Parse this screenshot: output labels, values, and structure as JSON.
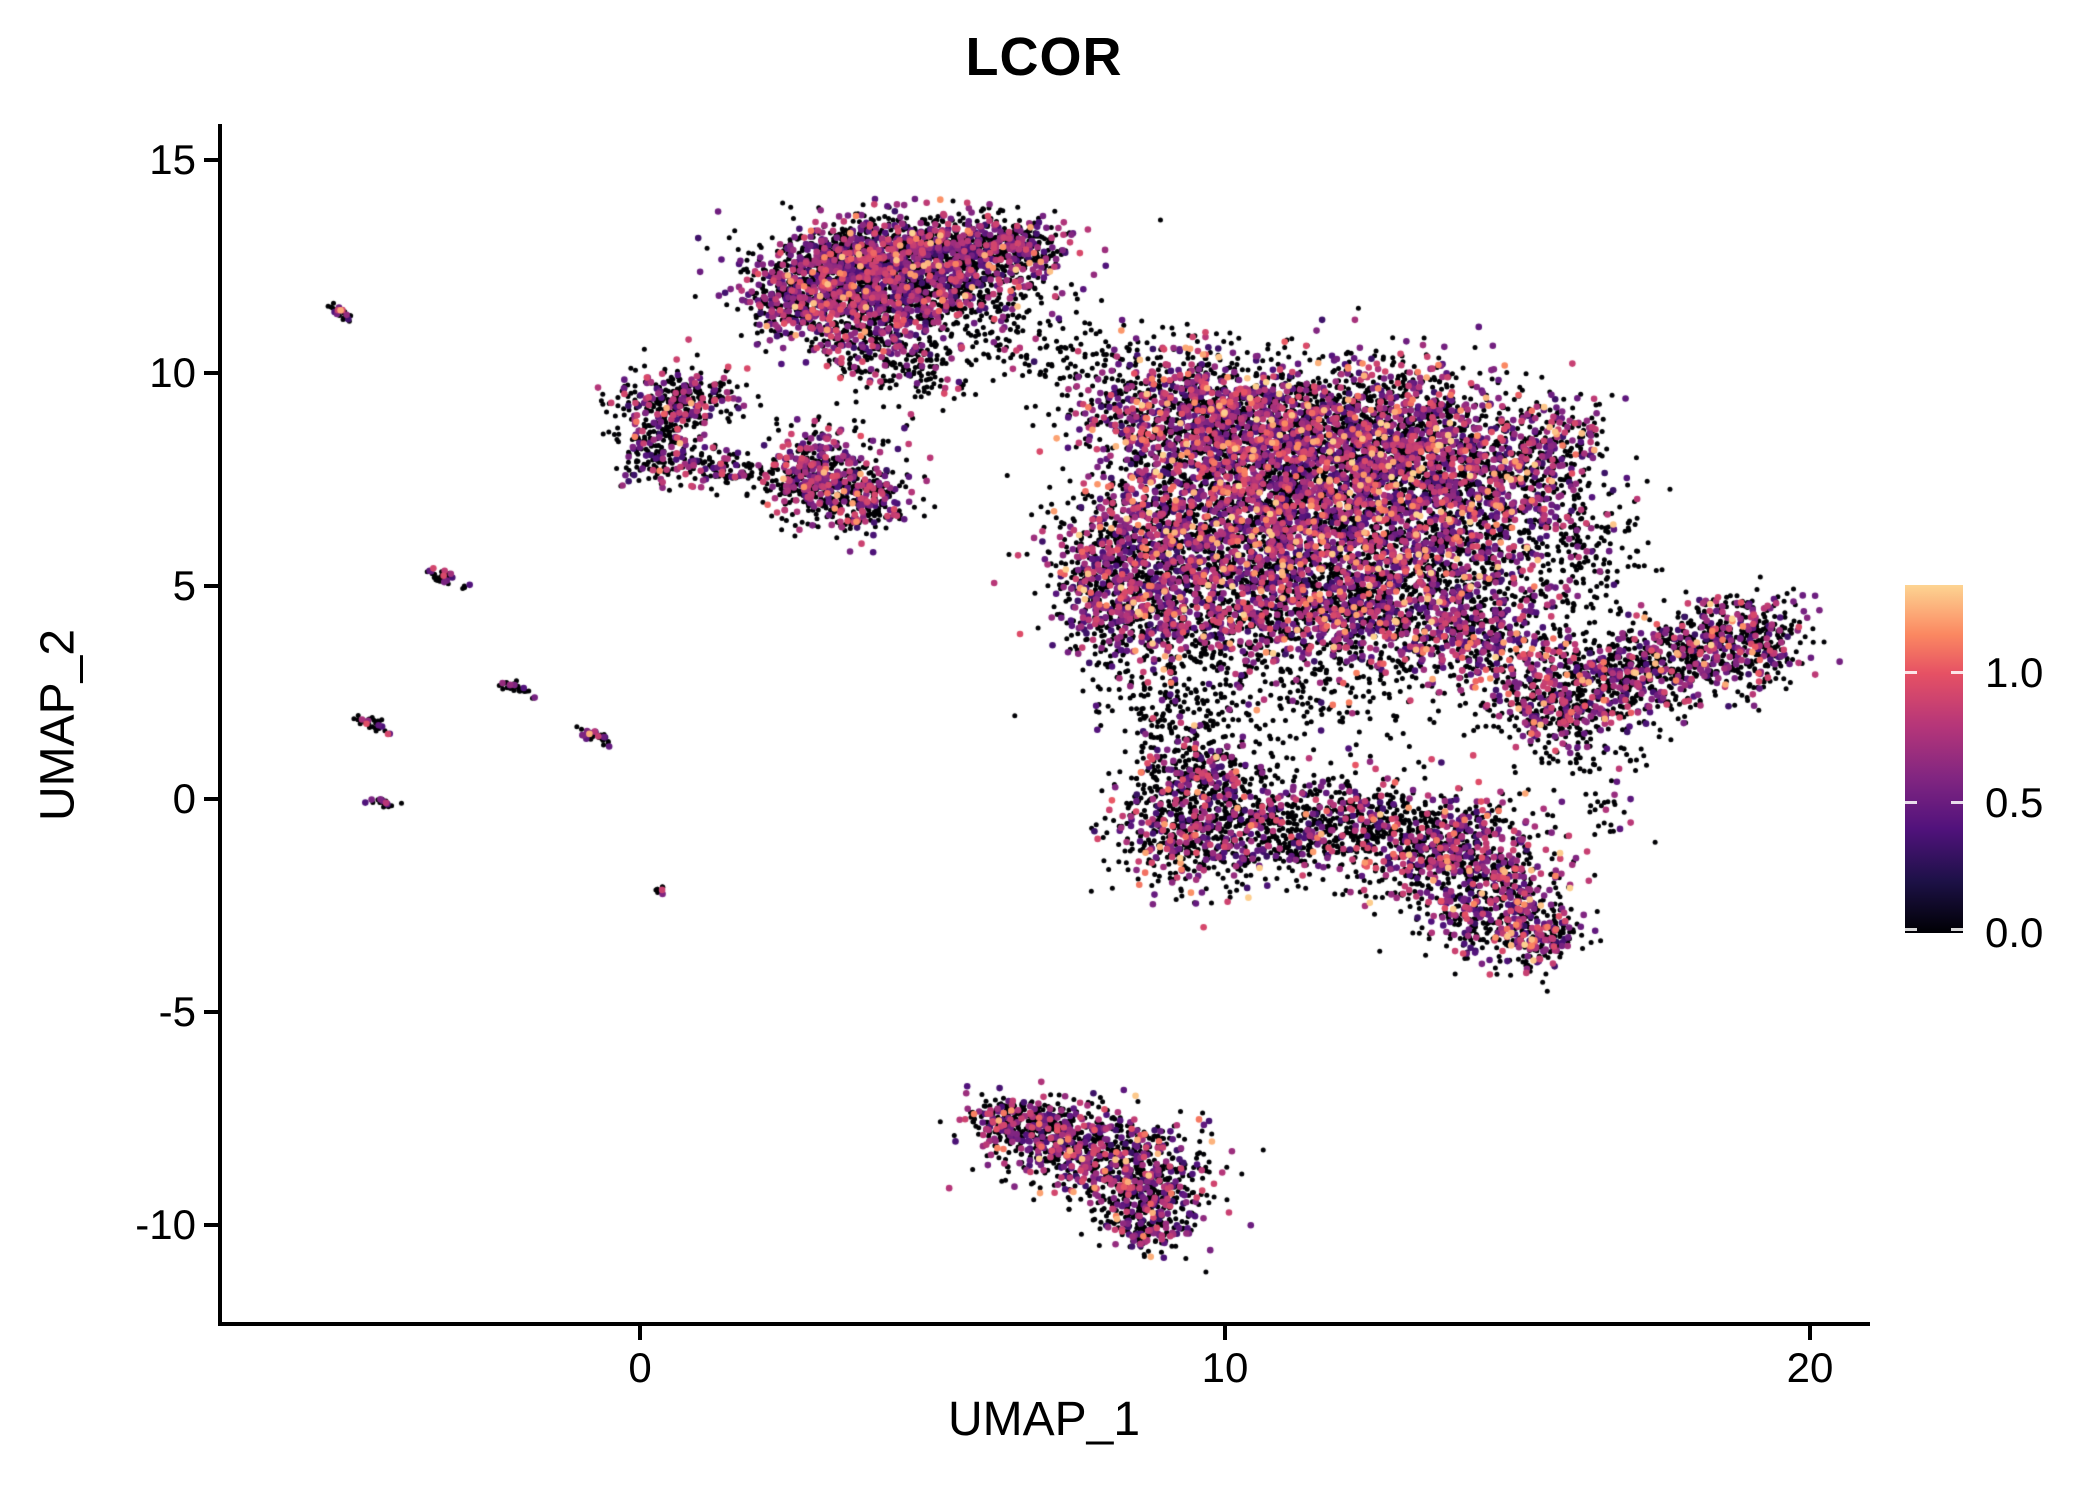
{
  "title": "LCOR",
  "panel": {
    "bg": "#ffffff",
    "axis_color": "#000000"
  },
  "chart_data": {
    "type": "scatter",
    "title": "LCOR",
    "xlabel": "UMAP_1",
    "ylabel": "UMAP_2",
    "xlim": [
      -7.15,
      20.96
    ],
    "ylim": [
      -12.28,
      15.76
    ],
    "grid": false,
    "seed": 42,
    "x_ticks": [
      {
        "value": 0,
        "label": "0"
      },
      {
        "value": 10,
        "label": "10"
      },
      {
        "value": 20,
        "label": "20"
      }
    ],
    "y_ticks": [
      {
        "value": 15,
        "label": "15"
      },
      {
        "value": 10,
        "label": "10"
      },
      {
        "value": 5,
        "label": "5"
      },
      {
        "value": 0,
        "label": "0"
      },
      {
        "value": -5,
        "label": "-5"
      },
      {
        "value": -10,
        "label": "-10"
      }
    ],
    "legend": {
      "position": "right",
      "range": [
        0,
        1.34
      ],
      "ticks": [
        {
          "value": 1.0,
          "label": "1.0"
        },
        {
          "value": 0.5,
          "label": "0.5"
        },
        {
          "value": 0.0,
          "label": "0.0"
        }
      ]
    },
    "colormap": {
      "name": "magma",
      "stops": [
        [
          0.0,
          "#000004"
        ],
        [
          0.2,
          "#1d1147"
        ],
        [
          0.4,
          "#51127c"
        ],
        [
          0.6,
          "#822681"
        ],
        [
          0.8,
          "#b63679"
        ],
        [
          1.0,
          "#e65164"
        ],
        [
          1.15,
          "#fb8861"
        ],
        [
          1.34,
          "#fdd492"
        ]
      ]
    },
    "point_style": {
      "r_zero": 2.5,
      "r_expr": 3.3
    },
    "clusters": [
      {
        "name": "top",
        "p0": 0.6,
        "pHigh": 0.03,
        "components": [
          {
            "x": 4.6,
            "y": 12.9,
            "sx": 1.1,
            "sy": 0.45,
            "n": 900
          },
          {
            "x": 3.4,
            "y": 12.2,
            "sx": 0.8,
            "sy": 0.55,
            "n": 800
          },
          {
            "x": 4.8,
            "y": 11.9,
            "sx": 0.9,
            "sy": 0.5,
            "n": 600
          },
          {
            "x": 5.9,
            "y": 12.9,
            "sx": 0.6,
            "sy": 0.4,
            "n": 250
          },
          {
            "x": 4.1,
            "y": 10.9,
            "sx": 0.6,
            "sy": 0.5,
            "n": 300
          },
          {
            "x": 6.6,
            "y": 13.0,
            "sx": 0.35,
            "sy": 0.3,
            "n": 90
          },
          {
            "x": 2.6,
            "y": 11.6,
            "sx": 0.4,
            "sy": 0.4,
            "n": 200
          }
        ]
      },
      {
        "name": "upper-left-small",
        "p0": 0.68,
        "pHigh": 0.02,
        "components": [
          {
            "x": 0.7,
            "y": 9.4,
            "sx": 0.55,
            "sy": 0.35,
            "n": 300
          },
          {
            "x": 0.3,
            "y": 8.3,
            "sx": 0.4,
            "sy": 0.45,
            "n": 220
          },
          {
            "x": 1.3,
            "y": 7.8,
            "sx": 0.3,
            "sy": 0.25,
            "n": 90
          }
        ]
      },
      {
        "name": "mid-left",
        "p0": 0.6,
        "pHigh": 0.03,
        "components": [
          {
            "x": 3.1,
            "y": 7.6,
            "sx": 0.55,
            "sy": 0.55,
            "n": 550
          },
          {
            "x": 3.9,
            "y": 7.0,
            "sx": 0.4,
            "sy": 0.35,
            "n": 180
          }
        ]
      },
      {
        "name": "main",
        "p0": 0.58,
        "pHigh": 0.055,
        "components": [
          {
            "x": 9.3,
            "y": 9.0,
            "sx": 0.9,
            "sy": 0.8,
            "n": 800
          },
          {
            "x": 11.2,
            "y": 8.8,
            "sx": 1.3,
            "sy": 0.8,
            "n": 1300
          },
          {
            "x": 13.2,
            "y": 8.3,
            "sx": 1.0,
            "sy": 0.9,
            "n": 1100
          },
          {
            "x": 10.3,
            "y": 7.0,
            "sx": 1.1,
            "sy": 1.0,
            "n": 1300
          },
          {
            "x": 12.3,
            "y": 6.3,
            "sx": 1.3,
            "sy": 1.1,
            "n": 1600
          },
          {
            "x": 8.6,
            "y": 6.0,
            "sx": 0.8,
            "sy": 0.9,
            "n": 600
          },
          {
            "x": 14.5,
            "y": 6.8,
            "sx": 0.9,
            "sy": 1.1,
            "n": 700
          },
          {
            "x": 15.6,
            "y": 8.3,
            "sx": 0.5,
            "sy": 0.6,
            "n": 200
          },
          {
            "x": 9.9,
            "y": 4.6,
            "sx": 1.0,
            "sy": 0.7,
            "n": 600
          },
          {
            "x": 12.0,
            "y": 4.2,
            "sx": 1.1,
            "sy": 0.8,
            "n": 700
          },
          {
            "x": 13.9,
            "y": 4.3,
            "sx": 0.8,
            "sy": 0.7,
            "n": 450
          },
          {
            "x": 8.3,
            "y": 4.3,
            "sx": 0.6,
            "sy": 0.6,
            "n": 250
          },
          {
            "x": 14.9,
            "y": 3.4,
            "sx": 0.7,
            "sy": 0.7,
            "n": 250
          },
          {
            "x": 7.9,
            "y": 5.2,
            "sx": 0.5,
            "sy": 0.8,
            "n": 200
          }
        ]
      },
      {
        "name": "right-arm",
        "p0": 0.65,
        "pHigh": 0.04,
        "components": [
          {
            "x": 16.3,
            "y": 2.6,
            "sx": 0.8,
            "sy": 0.55,
            "n": 400,
            "rot": 15
          },
          {
            "x": 17.6,
            "y": 3.2,
            "sx": 0.8,
            "sy": 0.55,
            "n": 450,
            "rot": 18
          },
          {
            "x": 18.8,
            "y": 3.9,
            "sx": 0.6,
            "sy": 0.5,
            "n": 300,
            "rot": 20
          },
          {
            "x": 19.3,
            "y": 3.3,
            "sx": 0.3,
            "sy": 0.4,
            "n": 80
          },
          {
            "x": 15.4,
            "y": 2.0,
            "sx": 0.4,
            "sy": 0.35,
            "n": 120
          }
        ]
      },
      {
        "name": "lower-center",
        "p0": 0.7,
        "pHigh": 0.03,
        "components": [
          {
            "x": 9.6,
            "y": 0.6,
            "sx": 0.6,
            "sy": 0.5,
            "n": 300
          },
          {
            "x": 9.4,
            "y": -0.7,
            "sx": 0.7,
            "sy": 0.7,
            "n": 500
          },
          {
            "x": 10.8,
            "y": -0.9,
            "sx": 0.8,
            "sy": 0.5,
            "n": 350
          },
          {
            "x": 12.0,
            "y": -0.3,
            "sx": 0.7,
            "sy": 0.5,
            "n": 250
          }
        ]
      },
      {
        "name": "lower-right",
        "p0": 0.6,
        "pHigh": 0.05,
        "components": [
          {
            "x": 13.9,
            "y": -1.3,
            "sx": 0.8,
            "sy": 0.7,
            "n": 700
          },
          {
            "x": 14.8,
            "y": -2.6,
            "sx": 0.6,
            "sy": 0.6,
            "n": 400
          },
          {
            "x": 15.3,
            "y": -3.3,
            "sx": 0.35,
            "sy": 0.35,
            "n": 150
          }
        ]
      },
      {
        "name": "bottom",
        "p0": 0.62,
        "pHigh": 0.03,
        "components": [
          {
            "x": 6.9,
            "y": -7.7,
            "sx": 0.7,
            "sy": 0.35,
            "n": 350
          },
          {
            "x": 7.9,
            "y": -8.4,
            "sx": 0.8,
            "sy": 0.5,
            "n": 550
          },
          {
            "x": 8.7,
            "y": -9.3,
            "sx": 0.5,
            "sy": 0.45,
            "n": 300
          },
          {
            "x": 8.6,
            "y": -10.1,
            "sx": 0.35,
            "sy": 0.3,
            "n": 120
          },
          {
            "x": 6.2,
            "y": -7.5,
            "sx": 0.3,
            "sy": 0.25,
            "n": 90
          }
        ]
      },
      {
        "name": "left-streaks",
        "p0": 0.72,
        "pHigh": 0.02,
        "components": [
          {
            "x": -5.1,
            "y": 11.4,
            "sx": 0.16,
            "sy": 0.06,
            "n": 30,
            "rot": -30
          },
          {
            "x": -3.3,
            "y": 5.15,
            "sx": 0.2,
            "sy": 0.07,
            "n": 40,
            "rot": -30
          },
          {
            "x": -4.55,
            "y": 1.75,
            "sx": 0.2,
            "sy": 0.07,
            "n": 35,
            "rot": -30
          },
          {
            "x": -2.1,
            "y": 2.6,
            "sx": 0.16,
            "sy": 0.07,
            "n": 30,
            "rot": -30
          },
          {
            "x": -0.75,
            "y": 1.45,
            "sx": 0.2,
            "sy": 0.07,
            "n": 35,
            "rot": -30
          },
          {
            "x": -4.35,
            "y": -0.1,
            "sx": 0.11,
            "sy": 0.05,
            "n": 20,
            "rot": -30
          },
          {
            "x": 0.35,
            "y": -2.1,
            "sx": 0.05,
            "sy": 0.05,
            "n": 8
          }
        ]
      },
      {
        "name": "sparse-bridges",
        "p0": 0.9,
        "pHigh": 0.01,
        "components": [
          {
            "x": 7.6,
            "y": 10.3,
            "sx": 0.7,
            "sy": 0.7,
            "n": 130
          },
          {
            "x": 6.3,
            "y": 11.4,
            "sx": 0.5,
            "sy": 0.6,
            "n": 90
          },
          {
            "x": 4.6,
            "y": 10.0,
            "sx": 0.6,
            "sy": 0.4,
            "n": 120
          },
          {
            "x": 16.0,
            "y": 1.0,
            "sx": 0.5,
            "sy": 0.4,
            "n": 60
          },
          {
            "x": 9.2,
            "y": 1.9,
            "sx": 0.5,
            "sy": 0.5,
            "n": 90
          },
          {
            "x": 16.3,
            "y": -0.3,
            "sx": 0.4,
            "sy": 0.4,
            "n": 25
          },
          {
            "x": 12.9,
            "y": -0.6,
            "sx": 0.5,
            "sy": 0.4,
            "n": 140
          },
          {
            "x": 11.0,
            "y": 2.6,
            "sx": 1.4,
            "sy": 0.8,
            "n": 260
          },
          {
            "x": 16.2,
            "y": 6.0,
            "sx": 0.5,
            "sy": 1.1,
            "n": 170
          },
          {
            "x": 8.6,
            "y": 2.9,
            "sx": 0.7,
            "sy": 0.6,
            "n": 90
          }
        ]
      }
    ]
  }
}
